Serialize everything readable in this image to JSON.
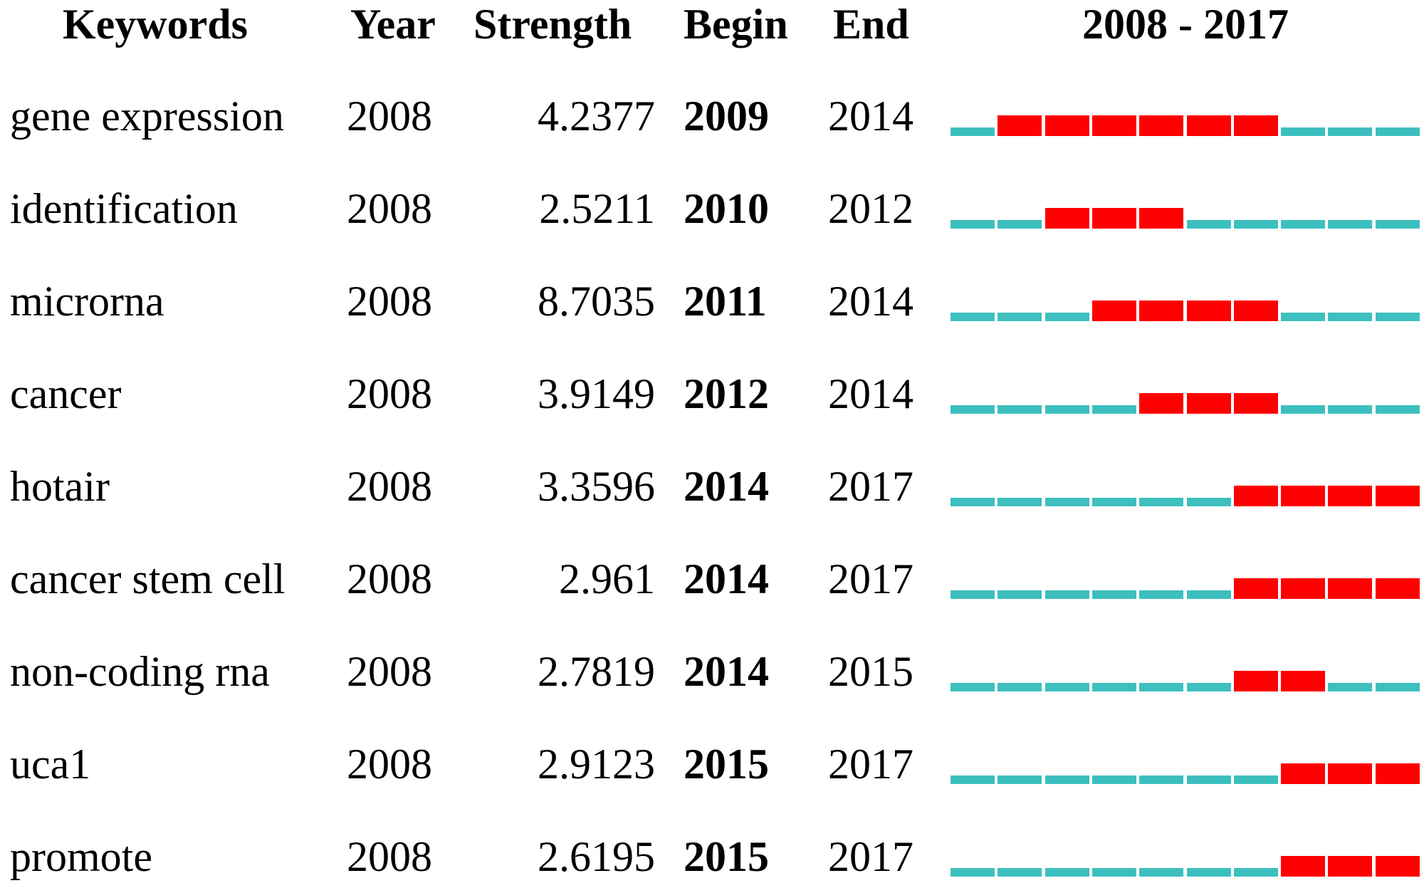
{
  "columns": {
    "keywords": "Keywords",
    "year": "Year",
    "strength": "Strength",
    "begin": "Begin",
    "end": "End",
    "range": "2008 - 2017"
  },
  "colors": {
    "burst": "#ff0000",
    "background": "#3dbfbf",
    "text": "#000000"
  },
  "chart_data": {
    "type": "table",
    "timeline_years": [
      2008,
      2009,
      2010,
      2011,
      2012,
      2013,
      2014,
      2015,
      2016,
      2017
    ],
    "rows": [
      {
        "keyword": "gene expression",
        "year": "2008",
        "strength": "4.2377",
        "begin": "2009",
        "end": "2014",
        "begin_year": 2009,
        "end_year": 2014
      },
      {
        "keyword": "identification",
        "year": "2008",
        "strength": "2.5211",
        "begin": "2010",
        "end": "2012",
        "begin_year": 2010,
        "end_year": 2012
      },
      {
        "keyword": "microrna",
        "year": "2008",
        "strength": "8.7035",
        "begin": "2011",
        "end": "2014",
        "begin_year": 2011,
        "end_year": 2014
      },
      {
        "keyword": "cancer",
        "year": "2008",
        "strength": "3.9149",
        "begin": "2012",
        "end": "2014",
        "begin_year": 2012,
        "end_year": 2014
      },
      {
        "keyword": "hotair",
        "year": "2008",
        "strength": "3.3596",
        "begin": "2014",
        "end": "2017",
        "begin_year": 2014,
        "end_year": 2017
      },
      {
        "keyword": "cancer stem cell",
        "year": "2008",
        "strength": "2.961",
        "begin": "2014",
        "end": "2017",
        "begin_year": 2014,
        "end_year": 2017
      },
      {
        "keyword": "non-coding rna",
        "year": "2008",
        "strength": "2.7819",
        "begin": "2014",
        "end": "2015",
        "begin_year": 2014,
        "end_year": 2015
      },
      {
        "keyword": "uca1",
        "year": "2008",
        "strength": "2.9123",
        "begin": "2015",
        "end": "2017",
        "begin_year": 2015,
        "end_year": 2017
      },
      {
        "keyword": "promote",
        "year": "2008",
        "strength": "2.6195",
        "begin": "2015",
        "end": "2017",
        "begin_year": 2015,
        "end_year": 2017
      }
    ]
  }
}
